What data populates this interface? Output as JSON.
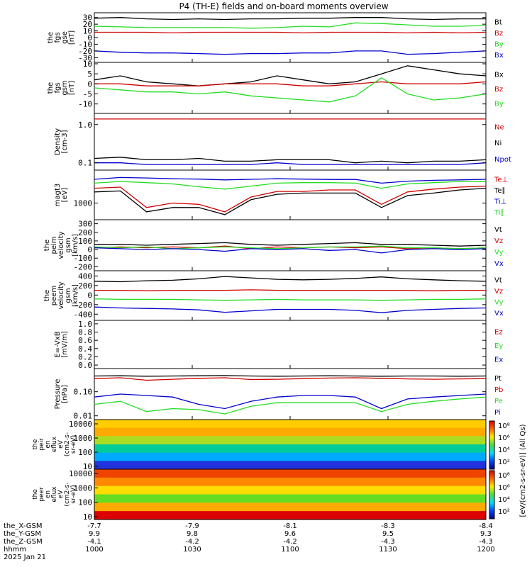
{
  "title": "P4 (TH-E) fields and on-board moments overview",
  "colors": {
    "black": "#000000",
    "red": "#d00000",
    "green": "#22dd22",
    "blue": "#0000cc"
  },
  "chart_data": {
    "type": "line",
    "x_ticks_hhmm": [
      "1000",
      "1030",
      "1100",
      "1130",
      "1200"
    ],
    "panels": [
      {
        "id": "fgs-gse",
        "ylabel": [
          "the",
          "fgs",
          "gse",
          "[nT]"
        ],
        "yticks": [
          "30",
          "20",
          "10",
          "0",
          "-10",
          "-20",
          "-30"
        ],
        "ylim": [
          -35,
          35
        ],
        "legend": [
          {
            "label": "Bt",
            "color": "black"
          },
          {
            "label": "Bz",
            "color": "red"
          },
          {
            "label": "By",
            "color": "green"
          },
          {
            "label": "Bx",
            "color": "blue"
          }
        ],
        "series": [
          {
            "name": "Bt",
            "color": "black",
            "values": [
              29,
              30,
              28,
              27,
              28,
              27,
              28,
              28,
              29,
              29,
              30,
              30,
              28,
              27,
              28,
              28
            ]
          },
          {
            "name": "Bz",
            "color": "red",
            "values": [
              8,
              8,
              8,
              7,
              8,
              8,
              8,
              8,
              7,
              8,
              8,
              8,
              7,
              8,
              7,
              8
            ]
          },
          {
            "name": "By",
            "color": "green",
            "values": [
              17,
              16,
              15,
              15,
              15,
              15,
              14,
              15,
              17,
              16,
              22,
              21,
              19,
              17,
              17,
              18
            ]
          },
          {
            "name": "Bx",
            "color": "blue",
            "values": [
              -20,
              -22,
              -23,
              -23,
              -24,
              -25,
              -24,
              -24,
              -23,
              -23,
              -20,
              -20,
              -25,
              -24,
              -22,
              -20
            ]
          }
        ]
      },
      {
        "id": "fgs-gsm",
        "ylabel": [
          "the",
          "fgs",
          "gsm",
          "[nT]"
        ],
        "yticks": [
          "10",
          "5",
          "0",
          "-5",
          "-10"
        ],
        "ylim": [
          -14,
          10
        ],
        "legend": [
          {
            "label": "Bx",
            "color": "black"
          },
          {
            "label": "Bz",
            "color": "red"
          },
          {
            "label": "By",
            "color": "green"
          }
        ],
        "series": [
          {
            "name": "Bx",
            "color": "black",
            "values": [
              2,
              4,
              1,
              0,
              -1,
              0,
              1,
              4,
              2,
              0,
              1,
              5,
              9,
              7,
              5,
              4
            ]
          },
          {
            "name": "Bz",
            "color": "red",
            "values": [
              0,
              0,
              -1,
              -1,
              -1,
              0,
              0,
              0,
              -1,
              -1,
              0,
              1,
              0,
              0,
              0,
              1
            ]
          },
          {
            "name": "By",
            "color": "green",
            "values": [
              -2,
              -3,
              -4,
              -4,
              -5,
              -4,
              -6,
              -7,
              -8,
              -9,
              -6,
              3,
              -5,
              -8,
              -7,
              -5
            ]
          }
        ]
      },
      {
        "id": "density",
        "ylabel": [
          "Density",
          "[cm-3]"
        ],
        "yticks": [
          "1.0",
          "0.1"
        ],
        "ylim": [
          0.07,
          1.8
        ],
        "log": true,
        "legend": [
          {
            "label": "Ne",
            "color": "red"
          },
          {
            "label": "Ni",
            "color": "black"
          },
          {
            "label": "Npot",
            "color": "blue"
          }
        ],
        "series": [
          {
            "name": "Ne",
            "color": "red",
            "values": [
              1.4,
              1.4,
              1.4,
              1.4,
              1.4,
              1.4,
              1.4,
              1.4,
              1.4,
              1.4,
              1.4,
              1.4,
              1.4,
              1.4,
              1.4,
              1.4
            ]
          },
          {
            "name": "Ni",
            "color": "black",
            "values": [
              0.13,
              0.14,
              0.12,
              0.12,
              0.13,
              0.11,
              0.11,
              0.12,
              0.12,
              0.12,
              0.1,
              0.11,
              0.1,
              0.11,
              0.11,
              0.12
            ]
          },
          {
            "name": "Npot",
            "color": "blue",
            "values": [
              0.1,
              0.1,
              0.09,
              0.09,
              0.09,
              0.09,
              0.09,
              0.1,
              0.09,
              0.09,
              0.09,
              0.09,
              0.09,
              0.09,
              0.09,
              0.1
            ]
          }
        ]
      },
      {
        "id": "temperature",
        "ylabel": [
          "magt3",
          "[eV]"
        ],
        "yticks": [
          "1000"
        ],
        "ylim": [
          300,
          12000
        ],
        "log": true,
        "legend": [
          {
            "label": "Te⊥",
            "color": "red"
          },
          {
            "label": "Te∥",
            "color": "black"
          },
          {
            "label": "Ti⊥",
            "color": "blue"
          },
          {
            "label": "Ti∥",
            "color": "green"
          }
        ],
        "series": [
          {
            "name": "Ti⊥",
            "color": "blue",
            "values": [
              6500,
              7500,
              7200,
              6800,
              6600,
              6200,
              6500,
              6800,
              6600,
              6400,
              6400,
              4800,
              5600,
              6000,
              6200,
              6500
            ]
          },
          {
            "name": "Ti∥",
            "color": "green",
            "values": [
              4800,
              5500,
              5000,
              4500,
              3600,
              3000,
              3800,
              4800,
              5000,
              5000,
              4800,
              3200,
              4500,
              5000,
              5500,
              5400
            ]
          },
          {
            "name": "Te⊥",
            "color": "red",
            "values": [
              3200,
              3500,
              700,
              1000,
              900,
              500,
              1600,
              2500,
              2500,
              2800,
              2800,
              900,
              2400,
              3000,
              3500,
              3800
            ]
          },
          {
            "name": "Te∥",
            "color": "black",
            "values": [
              2400,
              2600,
              500,
              700,
              700,
              400,
              1300,
              2000,
              2200,
              2200,
              2200,
              700,
              1800,
              2200,
              2800,
              3200
            ]
          }
        ]
      },
      {
        "id": "peim-velocity",
        "ylabel": [
          "the",
          "peim",
          "velocity",
          "gsm",
          "[km/s]"
        ],
        "yticks": [
          "300",
          "200",
          "100",
          "0",
          "-100",
          "-200"
        ],
        "ylim": [
          -230,
          330
        ],
        "legend": [
          {
            "label": "Vt",
            "color": "black"
          },
          {
            "label": "Vz",
            "color": "red"
          },
          {
            "label": "Vy",
            "color": "green"
          },
          {
            "label": "Vx",
            "color": "blue"
          }
        ],
        "series": [
          {
            "name": "Vt",
            "color": "black",
            "values": [
              60,
              60,
              50,
              60,
              70,
              80,
              60,
              50,
              60,
              70,
              80,
              60,
              60,
              50,
              40,
              50
            ]
          },
          {
            "name": "Vz",
            "color": "red",
            "values": [
              20,
              30,
              20,
              30,
              20,
              40,
              10,
              30,
              20,
              30,
              20,
              30,
              10,
              20,
              10,
              20
            ]
          },
          {
            "name": "Vy",
            "color": "green",
            "values": [
              30,
              20,
              30,
              10,
              20,
              30,
              20,
              10,
              20,
              30,
              30,
              40,
              20,
              20,
              10,
              20
            ]
          },
          {
            "name": "Vx",
            "color": "blue",
            "values": [
              20,
              10,
              0,
              10,
              0,
              -20,
              10,
              0,
              10,
              -10,
              0,
              -40,
              0,
              10,
              0,
              10
            ]
          }
        ]
      },
      {
        "id": "peem-velocity",
        "ylabel": [
          "the",
          "peem",
          "velocity",
          "gsm",
          "[km/s]"
        ],
        "yticks": [
          "400",
          "200",
          "0",
          "-200",
          "-400"
        ],
        "ylim": [
          -500,
          480
        ],
        "legend": [
          {
            "label": "Vt",
            "color": "black"
          },
          {
            "label": "Vz",
            "color": "red"
          },
          {
            "label": "Vy",
            "color": "green"
          },
          {
            "label": "Vx",
            "color": "blue"
          }
        ],
        "series": [
          {
            "name": "Vt",
            "color": "black",
            "values": [
              290,
              280,
              300,
              310,
              340,
              390,
              360,
              330,
              320,
              330,
              350,
              380,
              340,
              320,
              300,
              290
            ]
          },
          {
            "name": "Vz",
            "color": "red",
            "values": [
              100,
              100,
              90,
              100,
              100,
              100,
              110,
              100,
              100,
              100,
              100,
              100,
              100,
              90,
              100,
              100
            ]
          },
          {
            "name": "Vy",
            "color": "green",
            "values": [
              -80,
              -90,
              -90,
              -90,
              -100,
              -110,
              -100,
              -90,
              -100,
              -100,
              -100,
              -110,
              -100,
              -90,
              -90,
              -80
            ]
          },
          {
            "name": "Vx",
            "color": "blue",
            "values": [
              -250,
              -270,
              -280,
              -290,
              -310,
              -360,
              -330,
              -300,
              -300,
              -300,
              -320,
              -370,
              -320,
              -300,
              -280,
              -270
            ]
          }
        ]
      },
      {
        "id": "e-field",
        "ylabel": [
          "E=-VxB",
          "[mV/m]"
        ],
        "yticks": [
          "1.0",
          "0.8",
          "0.6",
          "0.4",
          "0.2",
          "0.0"
        ],
        "ylim": [
          -0.05,
          1.05
        ],
        "legend": [
          {
            "label": "Ez",
            "color": "red"
          },
          {
            "label": "Ey",
            "color": "green"
          },
          {
            "label": "Ex",
            "color": "blue"
          }
        ],
        "series": []
      },
      {
        "id": "pressure",
        "ylabel": [
          "Pressure",
          "[nPa]"
        ],
        "yticks": [
          "0.10",
          "0.01"
        ],
        "ylim": [
          0.008,
          0.8
        ],
        "log": true,
        "legend": [
          {
            "label": "Pt",
            "color": "black"
          },
          {
            "label": "Pb",
            "color": "red"
          },
          {
            "label": "Pe",
            "color": "green"
          },
          {
            "label": "Pi",
            "color": "blue"
          }
        ],
        "series": [
          {
            "name": "Pt",
            "color": "black",
            "values": [
              0.45,
              0.46,
              0.44,
              0.45,
              0.46,
              0.47,
              0.45,
              0.44,
              0.45,
              0.46,
              0.45,
              0.44,
              0.45,
              0.45,
              0.44,
              0.45
            ]
          },
          {
            "name": "Pb",
            "color": "red",
            "values": [
              0.35,
              0.38,
              0.3,
              0.33,
              0.36,
              0.38,
              0.32,
              0.33,
              0.35,
              0.37,
              0.38,
              0.36,
              0.34,
              0.33,
              0.34,
              0.35
            ]
          },
          {
            "name": "Pi",
            "color": "blue",
            "values": [
              0.06,
              0.08,
              0.07,
              0.06,
              0.03,
              0.02,
              0.04,
              0.06,
              0.07,
              0.07,
              0.06,
              0.02,
              0.05,
              0.06,
              0.07,
              0.08
            ]
          },
          {
            "name": "Pe",
            "color": "green",
            "values": [
              0.03,
              0.04,
              0.015,
              0.02,
              0.018,
              0.012,
              0.025,
              0.035,
              0.035,
              0.035,
              0.035,
              0.015,
              0.03,
              0.04,
              0.05,
              0.06
            ]
          }
        ]
      }
    ],
    "spectrograms": [
      {
        "id": "peir-en-eflux",
        "ylabel": [
          "the",
          "peir",
          "en",
          "eflux",
          "eV",
          "(cm2-s-",
          "sr-eV)"
        ],
        "yticks": [
          "10000",
          "1000",
          "100",
          "10"
        ]
      },
      {
        "id": "peer-en-eflux",
        "ylabel": [
          "the",
          "peer",
          "en",
          "eflux",
          "eV",
          "(cm2-s-",
          "sr-eV)"
        ],
        "yticks": [
          "10000",
          "1000",
          "100",
          "10"
        ]
      }
    ],
    "colorbar": {
      "ticks": [
        "10⁸",
        "10⁶",
        "10⁴",
        "10²",
        "10⁸",
        "10⁶",
        "10⁴",
        "10²"
      ],
      "label": "[eV/(cm2-s-sr-eV)] (All Qs)"
    },
    "ephemeris": {
      "rows": [
        {
          "label": "the_X-GSM",
          "values": [
            "-7.7",
            "-7.9",
            "-8.1",
            "-8.3",
            "-8.4"
          ]
        },
        {
          "label": "the_Y-GSM",
          "values": [
            "9.9",
            "9.8",
            "9.6",
            "9.5",
            "9.3"
          ]
        },
        {
          "label": "the_Z-GSM",
          "values": [
            "-4.1",
            "-4.2",
            "-4.2",
            "-4.3",
            "-4.3"
          ]
        },
        {
          "label": "hhmm",
          "values": [
            "1000",
            "1030",
            "1100",
            "1130",
            "1200"
          ]
        }
      ],
      "date": "2025 Jan 21"
    }
  }
}
